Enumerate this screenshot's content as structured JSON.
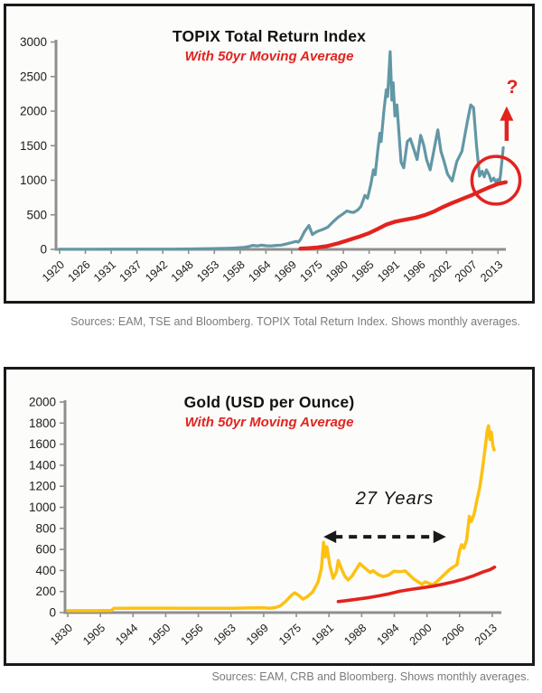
{
  "page": {
    "background_color": "#ffffff",
    "panel_border_color": "#191919"
  },
  "chart_data": [
    {
      "id": "topix",
      "type": "line",
      "title": "TOPIX Total Return Index",
      "subtitle": "With 50yr Moving Average",
      "source_note": "Sources: EAM, TSE and Bloomberg. TOPIX Total Return Index. Shows monthly averages.",
      "axis_color": "#8f8f8f",
      "grid": false,
      "legend": "none",
      "ylim": [
        0,
        3000
      ],
      "y_ticks": [
        0,
        500,
        1000,
        1500,
        2000,
        2500,
        3000
      ],
      "x_tick_labels": [
        "1920",
        "1926",
        "1931",
        "1937",
        "1942",
        "1948",
        "1953",
        "1958",
        "1964",
        "1969",
        "1975",
        "1980",
        "1985",
        "1991",
        "1996",
        "2002",
        "2007",
        "2013"
      ],
      "x_tick_years": [
        1920,
        1926,
        1931,
        1937,
        1942,
        1948,
        1953,
        1958,
        1964,
        1969,
        1975,
        1980,
        1985,
        1991,
        1996,
        2002,
        2007,
        2013
      ],
      "series": [
        {
          "name": "TOPIX Total Return Index",
          "color": "#6297a5",
          "points": [
            [
              1920,
              3
            ],
            [
              1928,
              3
            ],
            [
              1936,
              4
            ],
            [
              1944,
              4
            ],
            [
              1949,
              6
            ],
            [
              1952,
              10
            ],
            [
              1955,
              14
            ],
            [
              1957,
              20
            ],
            [
              1959,
              30
            ],
            [
              1960,
              42
            ],
            [
              1961,
              58
            ],
            [
              1962,
              50
            ],
            [
              1963,
              62
            ],
            [
              1964,
              52
            ],
            [
              1965,
              50
            ],
            [
              1966,
              58
            ],
            [
              1967,
              62
            ],
            [
              1968,
              80
            ],
            [
              1969,
              98
            ],
            [
              1970,
              115
            ],
            [
              1970.5,
              105
            ],
            [
              1971,
              140
            ],
            [
              1972,
              260
            ],
            [
              1973,
              345
            ],
            [
              1973.8,
              215
            ],
            [
              1974.5,
              245
            ],
            [
              1975,
              262
            ],
            [
              1976,
              288
            ],
            [
              1977,
              322
            ],
            [
              1978,
              398
            ],
            [
              1979,
              465
            ],
            [
              1980,
              518
            ],
            [
              1980.7,
              556
            ],
            [
              1981.4,
              540
            ],
            [
              1982,
              535
            ],
            [
              1982.8,
              570
            ],
            [
              1983.4,
              620
            ],
            [
              1984.2,
              780
            ],
            [
              1984.7,
              740
            ],
            [
              1985.4,
              940
            ],
            [
              1986,
              1150
            ],
            [
              1986.4,
              1080
            ],
            [
              1987,
              1420
            ],
            [
              1987.5,
              1680
            ],
            [
              1987.8,
              1560
            ],
            [
              1988.4,
              1980
            ],
            [
              1989,
              2310
            ],
            [
              1989.3,
              2210
            ],
            [
              1989.9,
              2860
            ],
            [
              1990.3,
              2160
            ],
            [
              1990.6,
              2410
            ],
            [
              1991,
              1930
            ],
            [
              1991.4,
              2090
            ],
            [
              1992.2,
              1260
            ],
            [
              1992.7,
              1180
            ],
            [
              1993.4,
              1560
            ],
            [
              1994,
              1600
            ],
            [
              1994.7,
              1440
            ],
            [
              1995.3,
              1300
            ],
            [
              1996,
              1650
            ],
            [
              1996.7,
              1510
            ],
            [
              1997.4,
              1290
            ],
            [
              1998.2,
              1150
            ],
            [
              1999.2,
              1470
            ],
            [
              2000,
              1730
            ],
            [
              2000.7,
              1420
            ],
            [
              2001.4,
              1280
            ],
            [
              2002.2,
              1090
            ],
            [
              2003.1,
              990
            ],
            [
              2004,
              1270
            ],
            [
              2005,
              1420
            ],
            [
              2006,
              1830
            ],
            [
              2006.7,
              2090
            ],
            [
              2007.3,
              2050
            ],
            [
              2008,
              1490
            ],
            [
              2008.7,
              1060
            ],
            [
              2009.3,
              1130
            ],
            [
              2009.8,
              1050
            ],
            [
              2010.3,
              1150
            ],
            [
              2010.9,
              1080
            ],
            [
              2011.4,
              990
            ],
            [
              2012,
              1030
            ],
            [
              2012.5,
              970
            ],
            [
              2012.9,
              1010
            ],
            [
              2013.3,
              960
            ],
            [
              2013.6,
              1090
            ],
            [
              2014.2,
              1470
            ]
          ]
        },
        {
          "name": "50yr Moving Average",
          "color": "#e2231e",
          "points": [
            [
              1971,
              10
            ],
            [
              1973,
              17
            ],
            [
              1975,
              28
            ],
            [
              1977,
              50
            ],
            [
              1979,
              88
            ],
            [
              1981,
              135
            ],
            [
              1983,
              182
            ],
            [
              1985,
              235
            ],
            [
              1987,
              295
            ],
            [
              1989,
              358
            ],
            [
              1991,
              400
            ],
            [
              1993,
              430
            ],
            [
              1995,
              457
            ],
            [
              1997,
              497
            ],
            [
              1999,
              545
            ],
            [
              2001,
              608
            ],
            [
              2003,
              668
            ],
            [
              2005,
              728
            ],
            [
              2007,
              788
            ],
            [
              2009,
              845
            ],
            [
              2011,
              900
            ],
            [
              2013,
              948
            ],
            [
              2014.8,
              972
            ]
          ]
        }
      ],
      "annotations": {
        "question_mark": "?",
        "circle": {
          "center_year": 2012.5,
          "center_value": 1000,
          "rx_years": 5.6,
          "ry_value": 345,
          "color": "#e2231e"
        },
        "up_arrow": {
          "year": 2015,
          "from_value": 1570,
          "to_value": 2070,
          "color": "#e2231e"
        }
      }
    },
    {
      "id": "gold",
      "type": "line",
      "title": "Gold (USD per Ounce)",
      "subtitle": "With 50yr Moving Average",
      "source_note": "Sources: EAM, CRB and Bloomberg. Shows monthly averages.",
      "axis_color": "#8f8f8f",
      "grid": false,
      "legend": "none",
      "ylim": [
        0,
        2000
      ],
      "y_ticks": [
        0,
        200,
        400,
        600,
        800,
        1000,
        1200,
        1400,
        1600,
        1800,
        2000
      ],
      "x_tick_labels": [
        "1830",
        "1905",
        "1944",
        "1950",
        "1956",
        "1963",
        "1969",
        "1975",
        "1981",
        "1988",
        "1994",
        "2000",
        "2006",
        "2013"
      ],
      "x_tick_years": [
        1830,
        1905,
        1944,
        1950,
        1956,
        1963,
        1969,
        1975,
        1981,
        1988,
        1994,
        2000,
        2006,
        2013
      ],
      "series": [
        {
          "name": "Gold (USD per Ounce)",
          "color": "#fdc112",
          "points": [
            [
              1830,
              18
            ],
            [
              1900,
              18
            ],
            [
              1906,
              20
            ],
            [
              1918,
              20
            ],
            [
              1921,
              40
            ],
            [
              1931,
              40
            ],
            [
              1944,
              42
            ],
            [
              1950,
              42
            ],
            [
              1956,
              41
            ],
            [
              1963,
              41
            ],
            [
              1966,
              44
            ],
            [
              1969,
              46
            ],
            [
              1970,
              40
            ],
            [
              1971,
              46
            ],
            [
              1972,
              62
            ],
            [
              1973,
              105
            ],
            [
              1974,
              160
            ],
            [
              1974.7,
              188
            ],
            [
              1975.4,
              165
            ],
            [
              1976.2,
              128
            ],
            [
              1977,
              150
            ],
            [
              1978,
              196
            ],
            [
              1979,
              290
            ],
            [
              1979.6,
              420
            ],
            [
              1980,
              668
            ],
            [
              1980.3,
              530
            ],
            [
              1980.6,
              625
            ],
            [
              1981.2,
              445
            ],
            [
              1981.9,
              325
            ],
            [
              1982.6,
              390
            ],
            [
              1983,
              495
            ],
            [
              1983.7,
              415
            ],
            [
              1984.4,
              345
            ],
            [
              1985.1,
              310
            ],
            [
              1985.9,
              345
            ],
            [
              1986.6,
              395
            ],
            [
              1987.6,
              465
            ],
            [
              1988.2,
              440
            ],
            [
              1988.9,
              410
            ],
            [
              1989.6,
              380
            ],
            [
              1990.1,
              398
            ],
            [
              1991,
              362
            ],
            [
              1992,
              342
            ],
            [
              1993,
              358
            ],
            [
              1993.9,
              392
            ],
            [
              1995,
              388
            ],
            [
              1996,
              396
            ],
            [
              1996.9,
              352
            ],
            [
              1997.6,
              318
            ],
            [
              1998.4,
              292
            ],
            [
              1999.1,
              268
            ],
            [
              1999.7,
              292
            ],
            [
              2000.4,
              276
            ],
            [
              2001.1,
              266
            ],
            [
              2001.9,
              298
            ],
            [
              2002.6,
              332
            ],
            [
              2003.4,
              372
            ],
            [
              2004.1,
              408
            ],
            [
              2004.8,
              432
            ],
            [
              2005.5,
              455
            ],
            [
              2006,
              590
            ],
            [
              2006.4,
              645
            ],
            [
              2006.9,
              612
            ],
            [
              2007.5,
              685
            ],
            [
              2008.1,
              915
            ],
            [
              2008.5,
              865
            ],
            [
              2009.1,
              935
            ],
            [
              2009.7,
              1065
            ],
            [
              2010.3,
              1185
            ],
            [
              2010.9,
              1365
            ],
            [
              2011.5,
              1575
            ],
            [
              2011.9,
              1725
            ],
            [
              2012.2,
              1775
            ],
            [
              2012.5,
              1645
            ],
            [
              2012.8,
              1715
            ],
            [
              2013.1,
              1590
            ],
            [
              2013.4,
              1545
            ]
          ]
        },
        {
          "name": "50yr Moving Average",
          "color": "#e2231e",
          "points": [
            [
              1983,
              105
            ],
            [
              1985,
              115
            ],
            [
              1987,
              127
            ],
            [
              1989,
              140
            ],
            [
              1991,
              158
            ],
            [
              1993,
              178
            ],
            [
              1995,
              203
            ],
            [
              1997,
              220
            ],
            [
              1999,
              234
            ],
            [
              2001,
              250
            ],
            [
              2003,
              270
            ],
            [
              2005,
              294
            ],
            [
              2007,
              320
            ],
            [
              2009,
              350
            ],
            [
              2011,
              385
            ],
            [
              2012.5,
              408
            ],
            [
              2013.5,
              432
            ]
          ]
        }
      ],
      "annotations": {
        "range_label": "27 Years",
        "range_arrow": {
          "from_year": 1980,
          "to_year": 2003.5,
          "value": 720,
          "color": "#1a1a1a"
        }
      }
    }
  ]
}
